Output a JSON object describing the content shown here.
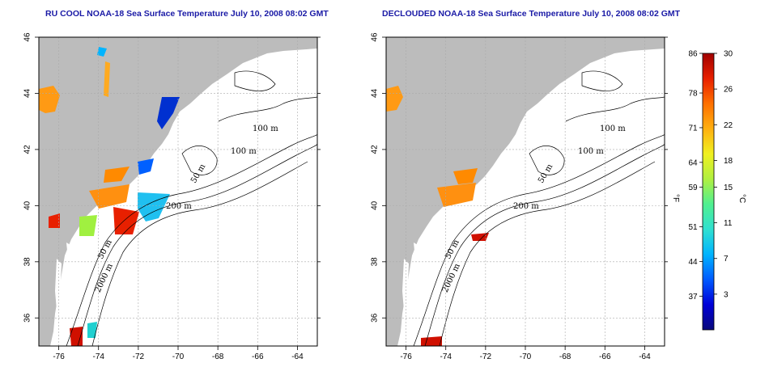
{
  "panels": [
    {
      "title": "RU COOL NOAA-18 Sea Surface Temperature July 10, 2008 08:02 GMT"
    },
    {
      "title": "DECLOUDED NOAA-18 Sea Surface Temperature July 10, 2008 08:02 GMT"
    }
  ],
  "axes": {
    "lon_ticks": [
      "-76",
      "-74",
      "-72",
      "-70",
      "-68",
      "-66",
      "-64"
    ],
    "lat_ticks": [
      "36",
      "38",
      "40",
      "42",
      "44",
      "46"
    ],
    "lon_range": [
      -77,
      -63
    ],
    "lat_range": [
      35,
      46
    ],
    "grid": true
  },
  "contour_labels": [
    "100 m",
    "100 m",
    "50 m",
    "200 m",
    "50 m",
    "2000 m"
  ],
  "colorbar": {
    "unit_left": "°F",
    "unit_right": "°C",
    "fahrenheit_labels": [
      "86",
      "78",
      "71",
      "64",
      "59",
      "51",
      "44",
      "37"
    ],
    "celsius_labels": [
      "30",
      "26",
      "22",
      "18",
      "15",
      "11",
      "7",
      "3"
    ],
    "colors": [
      "#08087a",
      "#0000d8",
      "#005aff",
      "#00b4ff",
      "#30e0d0",
      "#50f090",
      "#b0f040",
      "#f0f020",
      "#ffb010",
      "#ff7000",
      "#e82000",
      "#a00000"
    ]
  },
  "map_colors": {
    "land": "#bcbcbc",
    "ocean": "#ffffff",
    "contour": "#000000"
  }
}
